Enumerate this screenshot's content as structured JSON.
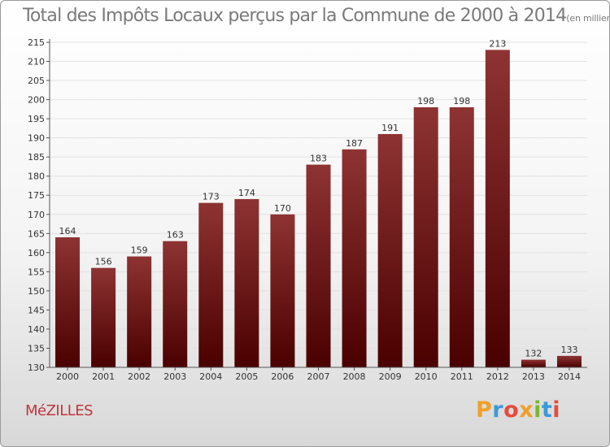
{
  "header": {
    "title": "Total des Impôts Locaux perçus par la Commune de 2000 à 2014",
    "subtitle": "(en milliers d'€)"
  },
  "footer": {
    "commune": "MéZILLES",
    "brand": {
      "letters": [
        "P",
        "r",
        "o",
        "x",
        "i",
        "t",
        "i"
      ],
      "colors": [
        "#f0a028",
        "#3a9ad9",
        "#e84a3c",
        "#f0a028",
        "#7cb82f",
        "#3a9ad9",
        "#e84a3c"
      ]
    }
  },
  "chart_data": {
    "type": "bar",
    "title": "Total des Impôts Locaux perçus par la Commune de 2000 à 2014",
    "units": "(en milliers d'€)",
    "categories": [
      "2000",
      "2001",
      "2002",
      "2003",
      "2004",
      "2005",
      "2006",
      "2007",
      "2008",
      "2009",
      "2010",
      "2011",
      "2012",
      "2013",
      "2014"
    ],
    "values": [
      164,
      156,
      159,
      163,
      173,
      174,
      170,
      183,
      187,
      191,
      198,
      198,
      213,
      132,
      133
    ],
    "ylim": [
      130,
      215
    ],
    "yticks": [
      130,
      135,
      140,
      145,
      150,
      155,
      160,
      165,
      170,
      175,
      180,
      185,
      190,
      195,
      200,
      205,
      210,
      215
    ],
    "xlabel": "",
    "ylabel": "",
    "grid": true,
    "colors": {
      "bar_top": "#8e3333",
      "bar_bottom": "#4a0000",
      "axis": "#555555",
      "grid": "#e2e2e2"
    }
  }
}
